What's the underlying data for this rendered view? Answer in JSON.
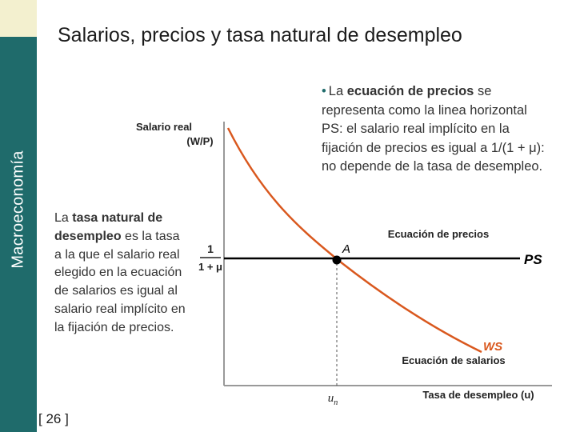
{
  "sidebar": {
    "vertical_title": "Macroeconomía",
    "color": "#1f6b6b",
    "accent_color": "#f3f0cf"
  },
  "slide": {
    "title": "Salarios, precios y tasa natural de desempleo",
    "page_number": "[ 26 ]"
  },
  "left_text": {
    "prefix": "La ",
    "bold": "tasa natural de desempleo",
    "rest": " es la tasa a la que el salario real elegido en la ecuación de salarios es igual al salario real implícito en la fijación de precios."
  },
  "right_text": {
    "bullet": "•",
    "prefix": "La ",
    "bold": "ecuación de precios",
    "rest": " se representa como la linea horizontal PS: el salario real implícito en la fijación de precios es igual a 1/(1 + μ): no depende de la tasa de desempleo."
  },
  "chart_data": {
    "type": "line",
    "ylabel_line1": "Salario real",
    "ylabel_line2": "(W/P)",
    "xlabel": "Tasa de desempleo (u)",
    "y_tick_numerator": "1",
    "y_tick_denominator": "1 + μ",
    "x_tick": "u",
    "x_tick_sub": "n",
    "point_label": "A",
    "price_caption": "Ecuación de precios",
    "wage_caption": "Ecuación de salarios",
    "series": [
      {
        "name": "PS",
        "kind": "horizontal",
        "color": "#000000"
      },
      {
        "name": "WS",
        "kind": "downward-curve",
        "color": "#d9581e"
      }
    ]
  }
}
